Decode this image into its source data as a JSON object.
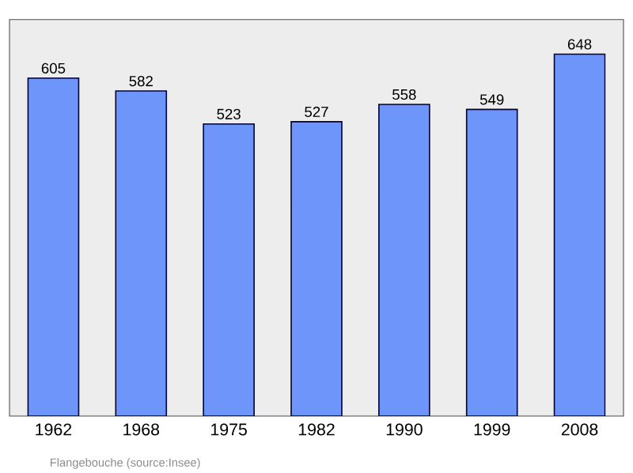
{
  "chart_data": {
    "type": "bar",
    "categories": [
      "1962",
      "1968",
      "1975",
      "1982",
      "1990",
      "1999",
      "2008"
    ],
    "values": [
      605,
      582,
      523,
      527,
      558,
      549,
      648
    ],
    "color": "#6e96fa",
    "ylim": [
      0,
      710
    ],
    "tick_labels": "x",
    "data_labels": true,
    "annotations": [
      "Flangebouche  (source:Insee)"
    ]
  }
}
